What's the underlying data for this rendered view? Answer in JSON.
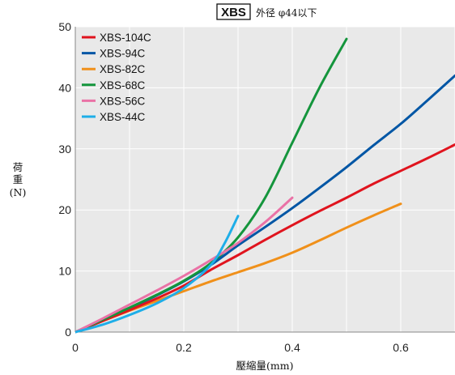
{
  "chart_data": {
    "type": "line",
    "title_boxed": "XBS",
    "title_rest": "外径 φ44以下",
    "xlabel": "壓縮量(mm)",
    "ylabel": [
      "荷",
      "重",
      "(N)"
    ],
    "xlim": [
      0,
      0.7
    ],
    "ylim": [
      0,
      50
    ],
    "x_ticks": [
      "0",
      "0.2",
      "0.4",
      "0.6"
    ],
    "y_ticks": [
      "0",
      "10",
      "20",
      "30",
      "40",
      "50"
    ],
    "grid": true,
    "legend_position": "top-left",
    "series": [
      {
        "name": "XBS-104C",
        "color": "#e0141e",
        "points": [
          [
            0,
            0
          ],
          [
            0.05,
            1.8
          ],
          [
            0.1,
            3.6
          ],
          [
            0.15,
            5.5
          ],
          [
            0.2,
            7.6
          ],
          [
            0.25,
            10.2
          ],
          [
            0.3,
            12.6
          ],
          [
            0.35,
            15.1
          ],
          [
            0.4,
            17.5
          ],
          [
            0.45,
            19.8
          ],
          [
            0.5,
            22.0
          ],
          [
            0.55,
            24.3
          ],
          [
            0.6,
            26.4
          ],
          [
            0.65,
            28.5
          ],
          [
            0.7,
            30.7
          ]
        ]
      },
      {
        "name": "XBS-94C",
        "color": "#0056a5",
        "points": [
          [
            0,
            0
          ],
          [
            0.05,
            1.9
          ],
          [
            0.1,
            3.9
          ],
          [
            0.15,
            6.0
          ],
          [
            0.2,
            8.3
          ],
          [
            0.25,
            11.0
          ],
          [
            0.3,
            14.2
          ],
          [
            0.35,
            17.2
          ],
          [
            0.4,
            20.3
          ],
          [
            0.45,
            23.6
          ],
          [
            0.5,
            27.0
          ],
          [
            0.55,
            30.6
          ],
          [
            0.6,
            34.1
          ],
          [
            0.65,
            38.0
          ],
          [
            0.7,
            42.0
          ]
        ]
      },
      {
        "name": "XBS-82C",
        "color": "#f0901a",
        "points": [
          [
            0,
            0
          ],
          [
            0.05,
            1.8
          ],
          [
            0.1,
            3.5
          ],
          [
            0.15,
            5.1
          ],
          [
            0.2,
            6.7
          ],
          [
            0.25,
            8.3
          ],
          [
            0.3,
            9.8
          ],
          [
            0.35,
            11.3
          ],
          [
            0.4,
            13.0
          ],
          [
            0.45,
            15.0
          ],
          [
            0.5,
            17.1
          ],
          [
            0.55,
            19.1
          ],
          [
            0.6,
            21.0
          ]
        ]
      },
      {
        "name": "XBS-68C",
        "color": "#14953c",
        "points": [
          [
            0,
            0
          ],
          [
            0.05,
            2.0
          ],
          [
            0.1,
            4.0
          ],
          [
            0.15,
            6.1
          ],
          [
            0.2,
            8.4
          ],
          [
            0.25,
            11.3
          ],
          [
            0.3,
            15.5
          ],
          [
            0.35,
            22.0
          ],
          [
            0.4,
            31.0
          ],
          [
            0.45,
            40.0
          ],
          [
            0.5,
            48.0
          ]
        ]
      },
      {
        "name": "XBS-56C",
        "color": "#ea72a6",
        "points": [
          [
            0,
            0
          ],
          [
            0.05,
            2.2
          ],
          [
            0.1,
            4.5
          ],
          [
            0.15,
            6.8
          ],
          [
            0.2,
            9.2
          ],
          [
            0.25,
            11.8
          ],
          [
            0.3,
            14.6
          ],
          [
            0.35,
            18.0
          ],
          [
            0.4,
            22.0
          ]
        ]
      },
      {
        "name": "XBS-44C",
        "color": "#1eaee8",
        "points": [
          [
            0,
            0
          ],
          [
            0.05,
            1.2
          ],
          [
            0.1,
            2.8
          ],
          [
            0.15,
            4.7
          ],
          [
            0.2,
            7.2
          ],
          [
            0.25,
            11.0
          ],
          [
            0.275,
            14.5
          ],
          [
            0.3,
            19.0
          ]
        ]
      }
    ]
  }
}
